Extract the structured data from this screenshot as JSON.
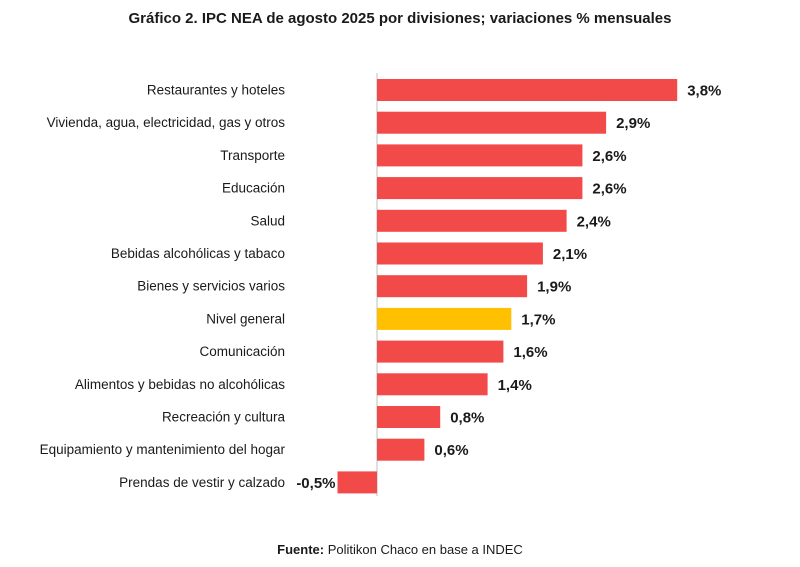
{
  "chart_data": {
    "type": "bar",
    "orientation": "horizontal",
    "title": "Gráfico 2. IPC NEA de agosto 2025 por divisiones; variaciones % mensuales",
    "categories": [
      "Restaurantes y hoteles",
      "Vivienda, agua, electricidad, gas y otros",
      "Transporte",
      "Educación",
      "Salud",
      "Bebidas alcohólicas y tabaco",
      "Bienes y servicios varios",
      "Nivel general",
      "Comunicación",
      "Alimentos y bebidas no alcohólicas",
      "Recreación y cultura",
      "Equipamiento y mantenimiento del hogar",
      "Prendas de vestir y calzado"
    ],
    "values": [
      3.8,
      2.9,
      2.6,
      2.6,
      2.4,
      2.1,
      1.9,
      1.7,
      1.6,
      1.4,
      0.8,
      0.6,
      -0.5
    ],
    "data_labels": [
      "3,8%",
      "2,9%",
      "2,6%",
      "2,6%",
      "2,4%",
      "2,1%",
      "1,9%",
      "1,7%",
      "1,6%",
      "1,4%",
      "0,8%",
      "0,6%",
      "-0,5%"
    ],
    "highlight_category": "Nivel general",
    "colors": {
      "bar": "#f24949",
      "highlight": "#ffc000",
      "axis": "#bfbfbf",
      "text": "#1a1a1a"
    },
    "xlim": [
      -0.5,
      3.8
    ],
    "grid": false,
    "legend": "none",
    "xlabel": "",
    "ylabel": ""
  },
  "source": {
    "label": "Fuente:",
    "text": " Politikon Chaco en base a INDEC"
  }
}
